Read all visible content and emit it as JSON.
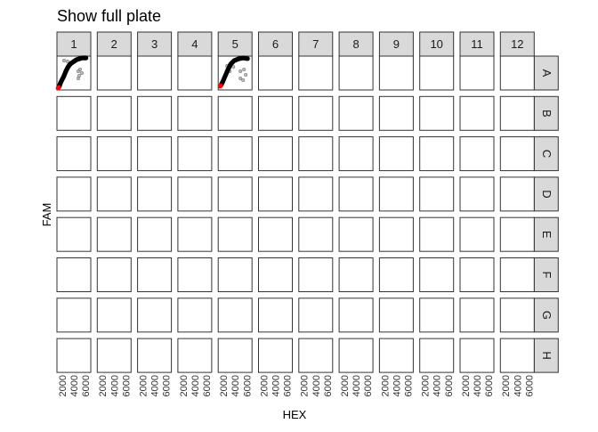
{
  "chart_data": {
    "type": "scatter",
    "title": "Show full plate",
    "xlabel": "HEX",
    "ylabel": "FAM",
    "columns": [
      "1",
      "2",
      "3",
      "4",
      "5",
      "6",
      "7",
      "8",
      "9",
      "10",
      "11",
      "12"
    ],
    "rows": [
      "A",
      "B",
      "C",
      "D",
      "E",
      "F",
      "G",
      "H"
    ],
    "xticks": [
      "2000",
      "4000",
      "6000"
    ],
    "xlim": [
      1100,
      6900
    ],
    "ylim": [
      0,
      8000
    ],
    "grid": false,
    "colors": {
      "cluster": "#000000",
      "outlier": "#a0a0a0",
      "low": "#ff0000",
      "strip": "#d9d9d9",
      "panel_border": "#333333"
    },
    "wells": [
      {
        "well": "A1",
        "cluster": [
          [
            1405,
            632
          ],
          [
            1558,
            1053
          ],
          [
            1711,
            1684
          ],
          [
            2016,
            2526
          ],
          [
            2321,
            3368
          ],
          [
            2626,
            4421
          ],
          [
            2932,
            5263
          ],
          [
            3237,
            5895
          ],
          [
            3542,
            6316
          ],
          [
            4000,
            6737
          ],
          [
            4458,
            7158
          ],
          [
            4916,
            7368
          ],
          [
            5374,
            7579
          ],
          [
            5832,
            7579
          ],
          [
            6137,
            7579
          ]
        ],
        "outliers": [
          [
            2321,
            6947
          ],
          [
            2932,
            6737
          ],
          [
            3237,
            6105
          ],
          [
            4763,
            4421
          ],
          [
            5068,
            4842
          ],
          [
            4916,
            3368
          ],
          [
            4763,
            2737
          ],
          [
            5374,
            4000
          ]
        ],
        "low": [
          [
            1253,
            421
          ],
          [
            1405,
            632
          ]
        ]
      },
      {
        "well": "A5",
        "cluster": [
          [
            1558,
            1053
          ],
          [
            1863,
            1895
          ],
          [
            2321,
            3368
          ],
          [
            2779,
            4842
          ],
          [
            3237,
            6105
          ],
          [
            3847,
            6947
          ],
          [
            4611,
            7368
          ],
          [
            5374,
            7579
          ],
          [
            6289,
            7368
          ]
        ],
        "outliers": [
          [
            2626,
            5684
          ],
          [
            3084,
            4421
          ],
          [
            3695,
            5474
          ],
          [
            4916,
            4421
          ],
          [
            5526,
            4842
          ],
          [
            5832,
            3579
          ],
          [
            5374,
            2316
          ],
          [
            4916,
            2737
          ]
        ],
        "low": [
          [
            1405,
            842
          ],
          [
            1558,
            1053
          ]
        ]
      }
    ]
  }
}
